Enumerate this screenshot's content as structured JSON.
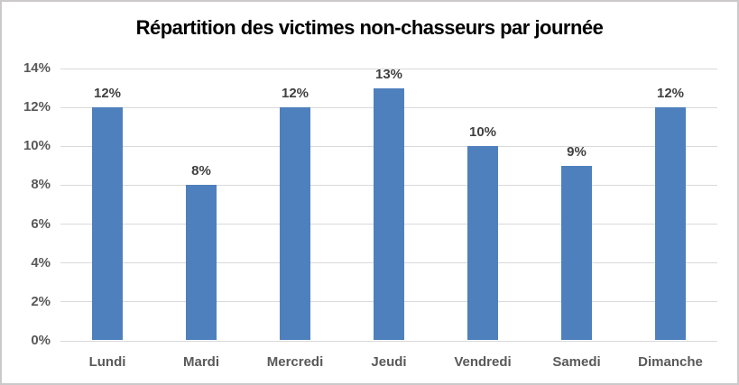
{
  "chart_data": {
    "type": "bar",
    "title": "Répartition des victimes non-chasseurs par journée",
    "categories": [
      "Lundi",
      "Mardi",
      "Mercredi",
      "Jeudi",
      "Vendredi",
      "Samedi",
      "Dimanche"
    ],
    "values": [
      12,
      8,
      12,
      13,
      10,
      9,
      12
    ],
    "data_labels": [
      "12%",
      "8%",
      "12%",
      "13%",
      "10%",
      "9%",
      "12%"
    ],
    "xlabel": "",
    "ylabel": "",
    "ylim": [
      0,
      14
    ],
    "ytick_step": 2,
    "ytick_labels": [
      "0%",
      "2%",
      "4%",
      "6%",
      "8%",
      "10%",
      "12%",
      "14%"
    ],
    "grid": true,
    "legend": false,
    "colors": {
      "bar": "#4E80BD",
      "data_label": "#404040",
      "axis_label": "#595959",
      "gridline": "#D9D9D9",
      "title": "#000000",
      "frame_border": "#CBC9C9",
      "background": "#FFFFFF"
    }
  }
}
